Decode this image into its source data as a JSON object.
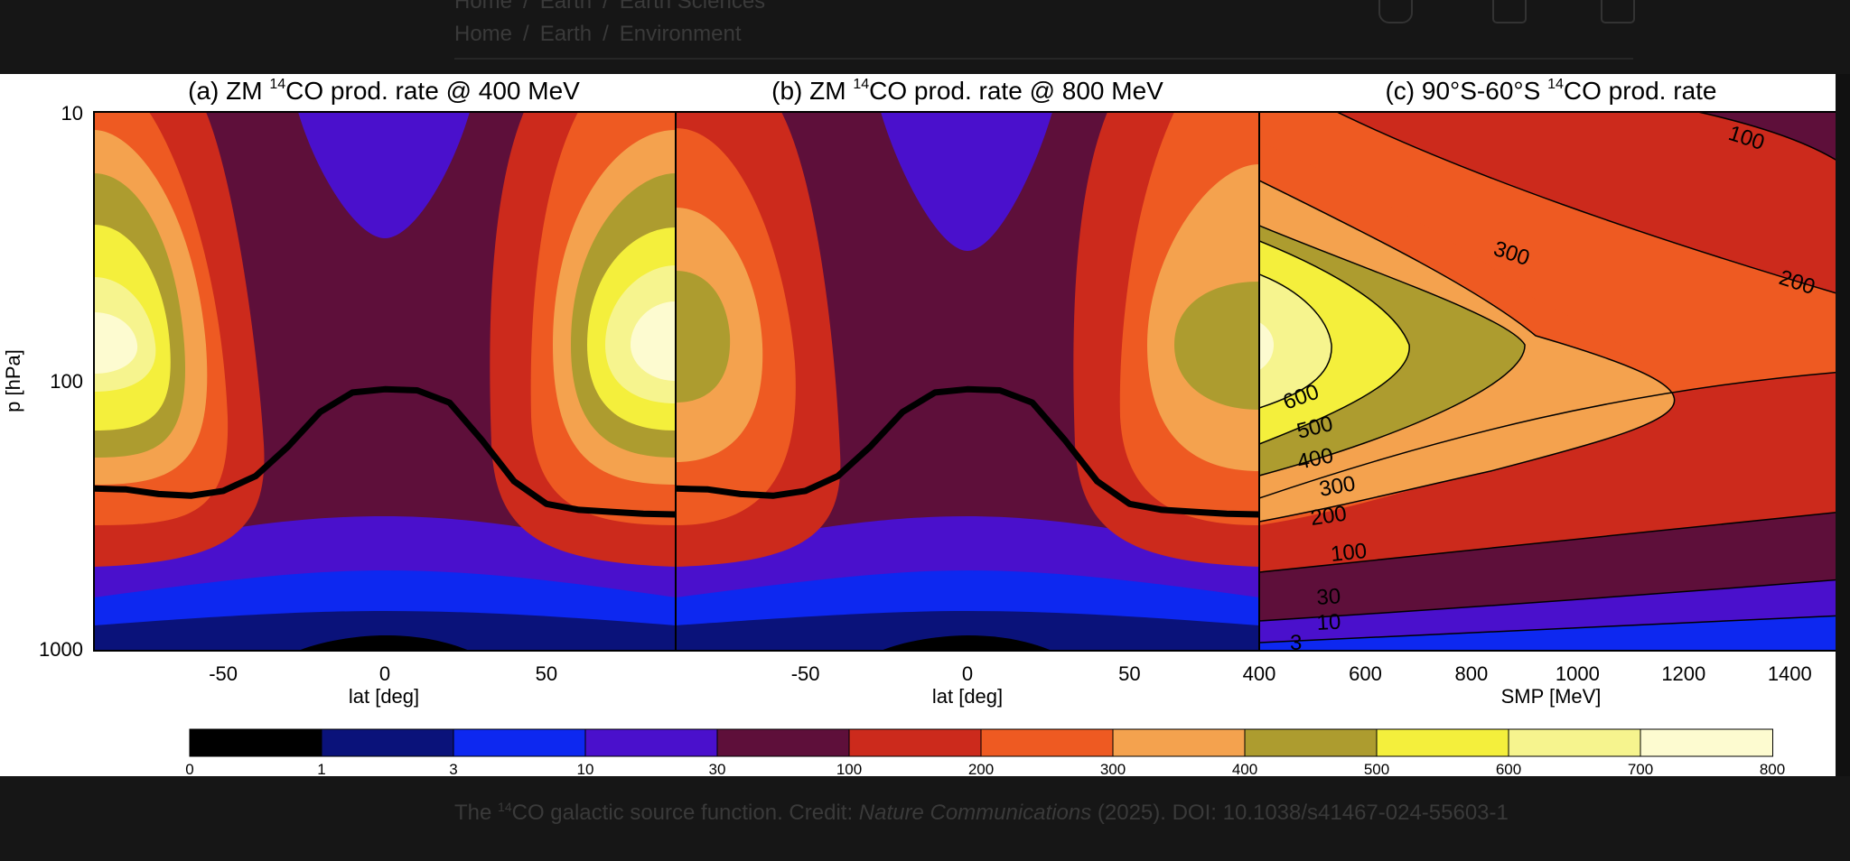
{
  "nav": {
    "crumb_top": [
      "Home",
      "Earth",
      "Earth Sciences"
    ],
    "crumb_main": [
      "Home",
      "Earth",
      "Environment"
    ],
    "separator": "/",
    "icons": [
      "bookmark-icon",
      "mail-icon",
      "print-icon"
    ]
  },
  "caption": {
    "prefix": "The ",
    "sup": "14",
    "main": "CO galactic source function. Credit: ",
    "journal": "Nature Communications",
    "suffix": " (2025). DOI: 10.1038/s41467-024-55603-1"
  },
  "chart_data": [
    {
      "type": "heatmap",
      "title": "(a) ZM 14CO prod. rate @ 400 MeV",
      "title_parts": [
        "(a) ZM ",
        "14",
        "CO prod. rate @ 400 MeV"
      ],
      "xlabel": "lat [deg]",
      "ylabel": "p [hPa]",
      "xlim": [
        -90,
        90
      ],
      "ylim": [
        1000,
        10
      ],
      "yscale": "log",
      "xticks": [
        -50,
        0,
        50
      ],
      "yticks": [
        10,
        100,
        1000
      ],
      "overlay_line": {
        "name": "tropopause",
        "x": [
          -90,
          -80,
          -70,
          -60,
          -50,
          -40,
          -30,
          -20,
          -10,
          0,
          10,
          20,
          30,
          40,
          50,
          60,
          70,
          80,
          90
        ],
        "y": [
          250,
          252,
          262,
          266,
          255,
          225,
          175,
          130,
          110,
          107,
          108,
          120,
          165,
          235,
          285,
          300,
          305,
          310,
          312
        ]
      }
    },
    {
      "type": "heatmap",
      "title": "(b) ZM 14CO prod. rate @ 800 MeV",
      "title_parts": [
        "(b) ZM ",
        "14",
        "CO prod. rate @ 800 MeV"
      ],
      "xlabel": "lat [deg]",
      "xlim": [
        -90,
        90
      ],
      "ylim": [
        1000,
        10
      ],
      "yscale": "log",
      "xticks": [
        -50,
        0,
        50
      ],
      "overlay_line": {
        "name": "tropopause",
        "x": [
          -90,
          -80,
          -70,
          -60,
          -50,
          -40,
          -30,
          -20,
          -10,
          0,
          10,
          20,
          30,
          40,
          50,
          60,
          70,
          80,
          90
        ],
        "y": [
          250,
          252,
          262,
          266,
          255,
          225,
          175,
          130,
          110,
          107,
          108,
          120,
          165,
          235,
          285,
          300,
          305,
          310,
          312
        ]
      }
    },
    {
      "type": "heatmap",
      "title": "(c) 90°S-60°S 14CO prod. rate",
      "title_parts": [
        "(c) 90°S-60°S ",
        "14",
        "CO prod. rate"
      ],
      "xlabel": "SMP [MeV]",
      "xlim": [
        400,
        1500
      ],
      "ylim": [
        1000,
        10
      ],
      "yscale": "log",
      "xticks": [
        400,
        600,
        800,
        1000,
        1200,
        1400
      ],
      "contour_labels": [
        "100",
        "300",
        "200",
        "600",
        "500",
        "400",
        "300",
        "200",
        "100",
        "30",
        "10",
        "3"
      ]
    }
  ],
  "colorbar": {
    "ticks": [
      "0",
      "1",
      "3",
      "10",
      "30",
      "100",
      "200",
      "300",
      "400",
      "500",
      "600",
      "700",
      "800"
    ],
    "colors": [
      "#000000",
      "#0a127a",
      "#0d28f0",
      "#4a10cc",
      "#5e0f3a",
      "#cc2a1c",
      "#ee5a22",
      "#f4a24e",
      "#ad9c2f",
      "#f4ef3c",
      "#f6f48e",
      "#fdfbd0"
    ]
  }
}
